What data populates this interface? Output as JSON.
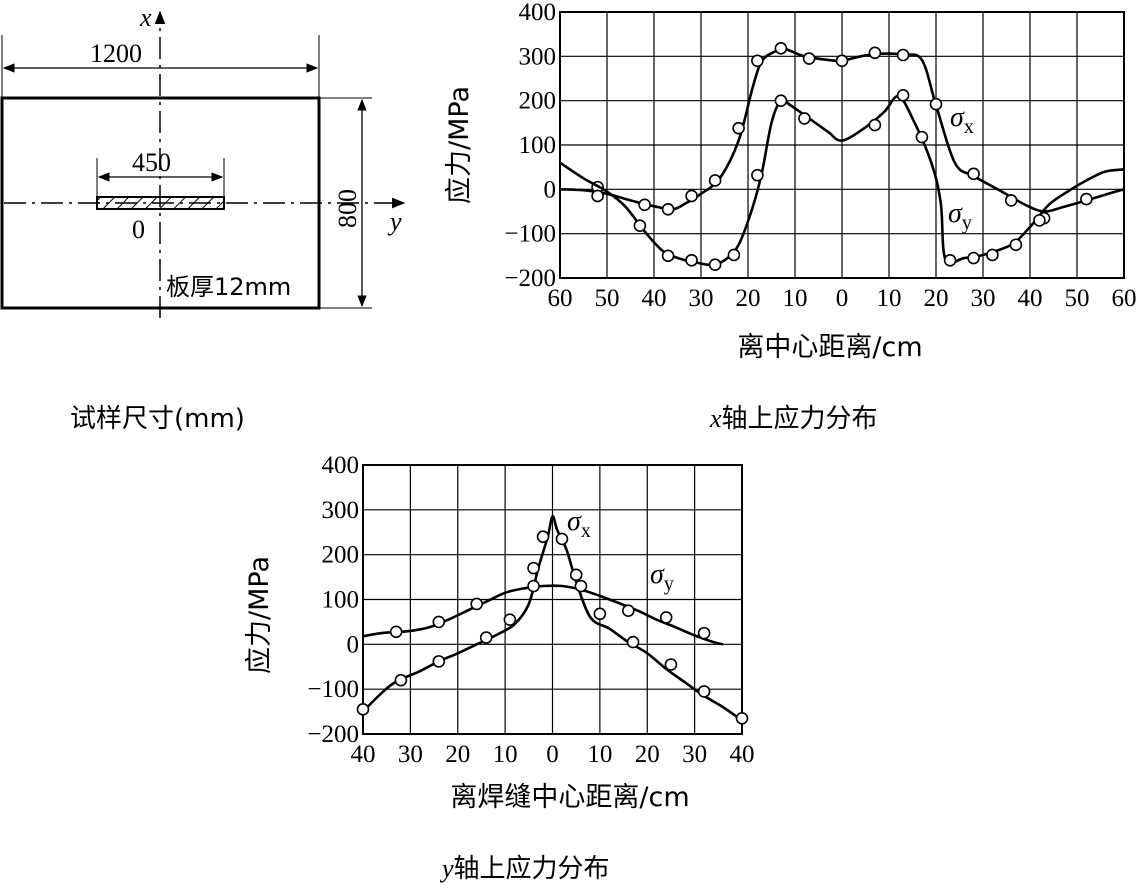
{
  "specimen": {
    "caption": "试样尺寸(mm)",
    "axis_x": "x",
    "axis_y": "y",
    "width_label": "1200",
    "height_label": "800",
    "weld_length_label": "450",
    "origin_label": "0",
    "thickness_label": "板厚12mm"
  },
  "chart_data": [
    {
      "type": "line",
      "caption_var": "x",
      "caption": "轴上应力分布",
      "xlabel": "离中心距离/cm",
      "ylabel": "应力/MPa",
      "ylim": [
        -200,
        400
      ],
      "xlim": [
        -60,
        60
      ],
      "xticks": [
        -60,
        -50,
        -40,
        -30,
        -20,
        -10,
        0,
        10,
        20,
        30,
        40,
        50,
        60
      ],
      "xtick_labels": [
        "60",
        "50",
        "40",
        "30",
        "20",
        "10",
        "0",
        "10",
        "20",
        "30",
        "40",
        "50",
        "60"
      ],
      "yticks": [
        400,
        300,
        200,
        100,
        0,
        -100,
        -200
      ],
      "ytick_labels": [
        "400",
        "300",
        "200",
        "100",
        "0",
        "−100",
        "−200"
      ],
      "grid": true,
      "series": [
        {
          "name": "σx",
          "curve": [
            [
              -60,
              0
            ],
            [
              -55,
              -2
            ],
            [
              -50,
              -10
            ],
            [
              -45,
              -25
            ],
            [
              -40,
              -38
            ],
            [
              -36,
              -45
            ],
            [
              -33,
              -30
            ],
            [
              -30,
              -10
            ],
            [
              -26,
              25
            ],
            [
              -22,
              110
            ],
            [
              -19,
              230
            ],
            [
              -17,
              290
            ],
            [
              -14,
              312
            ],
            [
              -12,
              316
            ],
            [
              -8,
              300
            ],
            [
              -3,
              292
            ],
            [
              0,
              290
            ],
            [
              4,
              300
            ],
            [
              8,
              306
            ],
            [
              13,
              304
            ],
            [
              17,
              292
            ],
            [
              20,
              190
            ],
            [
              24,
              60
            ],
            [
              28,
              30
            ],
            [
              34,
              -5
            ],
            [
              39,
              -35
            ],
            [
              43,
              -50
            ],
            [
              47,
              -40
            ],
            [
              52,
              -25
            ],
            [
              56,
              -12
            ],
            [
              60,
              0
            ]
          ],
          "markers": [
            [
              -52,
              5
            ],
            [
              -42,
              -35
            ],
            [
              -37,
              -45
            ],
            [
              -32,
              -15
            ],
            [
              -27,
              20
            ],
            [
              -22,
              138
            ],
            [
              -18,
              290
            ],
            [
              -13,
              318
            ],
            [
              -7,
              295
            ],
            [
              0,
              290
            ],
            [
              7,
              308
            ],
            [
              13,
              303
            ],
            [
              20,
              192
            ],
            [
              28,
              35
            ],
            [
              36,
              -25
            ],
            [
              43,
              -65
            ],
            [
              52,
              -22
            ]
          ]
        },
        {
          "name": "σy",
          "curve": [
            [
              -60,
              60
            ],
            [
              -55,
              25
            ],
            [
              -50,
              -5
            ],
            [
              -46,
              -40
            ],
            [
              -42,
              -95
            ],
            [
              -38,
              -140
            ],
            [
              -34,
              -158
            ],
            [
              -31,
              -165
            ],
            [
              -28,
              -170
            ],
            [
              -25,
              -160
            ],
            [
              -22,
              -125
            ],
            [
              -19,
              -40
            ],
            [
              -17,
              40
            ],
            [
              -15,
              150
            ],
            [
              -13,
              200
            ],
            [
              -11,
              190
            ],
            [
              -7,
              160
            ],
            [
              -3,
              130
            ],
            [
              0,
              110
            ],
            [
              5,
              140
            ],
            [
              9,
              175
            ],
            [
              12,
              210
            ],
            [
              15,
              160
            ],
            [
              19,
              60
            ],
            [
              21,
              -30
            ],
            [
              22,
              -158
            ],
            [
              26,
              -155
            ],
            [
              30,
              -148
            ],
            [
              36,
              -125
            ],
            [
              40,
              -85
            ],
            [
              44,
              -35
            ],
            [
              48,
              -5
            ],
            [
              52,
              20
            ],
            [
              56,
              40
            ],
            [
              60,
              45
            ]
          ],
          "markers": [
            [
              -52,
              -15
            ],
            [
              -43,
              -82
            ],
            [
              -37,
              -150
            ],
            [
              -32,
              -160
            ],
            [
              -27,
              -170
            ],
            [
              -23,
              -148
            ],
            [
              -18,
              32
            ],
            [
              -13,
              200
            ],
            [
              -8,
              160
            ],
            [
              7,
              145
            ],
            [
              13,
              212
            ],
            [
              17,
              118
            ],
            [
              23,
              -160
            ],
            [
              28,
              -155
            ],
            [
              32,
              -148
            ],
            [
              37,
              -125
            ],
            [
              42,
              -70
            ]
          ]
        }
      ]
    },
    {
      "type": "line",
      "caption_var": "y",
      "caption": "轴上应力分布",
      "xlabel": "离焊缝中心距离/cm",
      "ylabel": "应力/MPa",
      "ylim": [
        -200,
        400
      ],
      "xlim": [
        -40,
        40
      ],
      "xticks": [
        -40,
        -30,
        -20,
        -10,
        0,
        10,
        20,
        30,
        40
      ],
      "xtick_labels": [
        "40",
        "30",
        "20",
        "10",
        "0",
        "10",
        "20",
        "30",
        "40"
      ],
      "yticks": [
        400,
        300,
        200,
        100,
        0,
        -100,
        -200
      ],
      "ytick_labels": [
        "400",
        "300",
        "200",
        "100",
        "0",
        "−100",
        "−200"
      ],
      "grid": true,
      "series": [
        {
          "name": "σx",
          "curve": [
            [
              -40,
              -150
            ],
            [
              -34,
              -90
            ],
            [
              -28,
              -60
            ],
            [
              -24,
              -38
            ],
            [
              -20,
              -20
            ],
            [
              -16,
              0
            ],
            [
              -12,
              20
            ],
            [
              -8,
              45
            ],
            [
              -5,
              90
            ],
            [
              -3,
              170
            ],
            [
              -1,
              240
            ],
            [
              0,
              285
            ],
            [
              1,
              255
            ],
            [
              3,
              210
            ],
            [
              5,
              140
            ],
            [
              8,
              60
            ],
            [
              12,
              35
            ],
            [
              16,
              5
            ],
            [
              20,
              -20
            ],
            [
              24,
              -55
            ],
            [
              28,
              -85
            ],
            [
              32,
              -115
            ],
            [
              36,
              -140
            ],
            [
              40,
              -170
            ]
          ],
          "markers": [
            [
              -40,
              -145
            ],
            [
              -32,
              -80
            ],
            [
              -24,
              -38
            ],
            [
              -14,
              15
            ],
            [
              -9,
              55
            ],
            [
              -4,
              170
            ],
            [
              -2,
              240
            ],
            [
              2,
              235
            ],
            [
              5,
              155
            ],
            [
              10,
              68
            ],
            [
              17,
              5
            ],
            [
              25,
              -45
            ],
            [
              32,
              -105
            ],
            [
              40,
              -165
            ]
          ]
        },
        {
          "name": "σy",
          "curve": [
            [
              -40,
              18
            ],
            [
              -36,
              25
            ],
            [
              -30,
              30
            ],
            [
              -26,
              38
            ],
            [
              -22,
              55
            ],
            [
              -18,
              75
            ],
            [
              -14,
              95
            ],
            [
              -10,
              115
            ],
            [
              -6,
              125
            ],
            [
              -2,
              130
            ],
            [
              2,
              130
            ],
            [
              6,
              122
            ],
            [
              10,
              108
            ],
            [
              14,
              92
            ],
            [
              18,
              75
            ],
            [
              22,
              55
            ],
            [
              26,
              38
            ],
            [
              30,
              20
            ],
            [
              34,
              5
            ],
            [
              36,
              0
            ]
          ],
          "markers": [
            [
              -33,
              28
            ],
            [
              -24,
              50
            ],
            [
              -16,
              90
            ],
            [
              -4,
              130
            ],
            [
              6,
              130
            ],
            [
              16,
              75
            ],
            [
              24,
              60
            ],
            [
              32,
              25
            ]
          ]
        }
      ]
    }
  ]
}
